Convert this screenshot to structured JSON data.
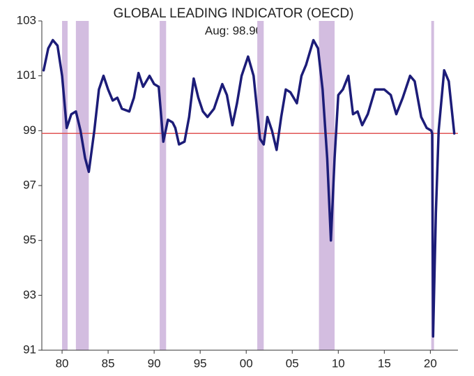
{
  "chart_data": {
    "type": "line",
    "title": "GLOBAL LEADING INDICATOR (OECD)",
    "subtitle": "Aug: 98.90",
    "xlim": [
      1977.8,
      2023
    ],
    "ylim": [
      91,
      103
    ],
    "yticks": [
      91,
      93,
      95,
      97,
      99,
      101,
      103
    ],
    "xticks": [
      {
        "value": 1980,
        "label": "80"
      },
      {
        "value": 1985,
        "label": "85"
      },
      {
        "value": 1990,
        "label": "90"
      },
      {
        "value": 1995,
        "label": "95"
      },
      {
        "value": 2000,
        "label": "00"
      },
      {
        "value": 2005,
        "label": "05"
      },
      {
        "value": 2010,
        "label": "10"
      },
      {
        "value": 2015,
        "label": "15"
      },
      {
        "value": 2020,
        "label": "20"
      }
    ],
    "reference_line": 98.9,
    "reference_color": "#e05555",
    "recessions": [
      [
        1980.0,
        1980.6
      ],
      [
        1981.5,
        1982.9
      ],
      [
        1990.6,
        1991.3
      ],
      [
        2001.2,
        2001.9
      ],
      [
        2007.9,
        2009.6
      ],
      [
        2020.1,
        2020.4
      ]
    ],
    "recession_color": "#d3bde0",
    "series": [
      {
        "name": "Global leading indicator",
        "color": "#1c1c78",
        "x": [
          1978,
          1978.5,
          1979,
          1979.5,
          1980,
          1980.5,
          1981,
          1981.5,
          1982,
          1982.5,
          1982.9,
          1983.5,
          1984,
          1984.5,
          1985,
          1985.5,
          1986,
          1986.5,
          1987.3,
          1987.8,
          1988.3,
          1988.8,
          1989.5,
          1990,
          1990.5,
          1991,
          1991.5,
          1992,
          1992.3,
          1992.7,
          1993.3,
          1993.8,
          1994.3,
          1994.8,
          1995.3,
          1995.8,
          1996.5,
          1997.4,
          1997.9,
          1998.5,
          1999,
          1999.5,
          2000.2,
          2000.8,
          2001.5,
          2001.9,
          2002.3,
          2002.8,
          2003.3,
          2003.8,
          2004.3,
          2004.8,
          2005.5,
          2006,
          2006.5,
          2007.3,
          2007.8,
          2008.3,
          2008.8,
          2009.2,
          2009.6,
          2010,
          2010.5,
          2011.1,
          2011.6,
          2012.1,
          2012.6,
          2013.2,
          2014,
          2015,
          2015.7,
          2016.3,
          2017,
          2017.8,
          2018.3,
          2019,
          2019.6,
          2020.1,
          2020.2,
          2020.3,
          2020.6,
          2020.9,
          2021.5,
          2022,
          2022.6
        ],
        "values": [
          101.2,
          102.0,
          102.3,
          102.1,
          101.0,
          99.1,
          99.6,
          99.7,
          99.0,
          98.0,
          97.5,
          99.0,
          100.5,
          101.0,
          100.5,
          100.1,
          100.2,
          99.8,
          99.7,
          100.2,
          101.1,
          100.6,
          101.0,
          100.7,
          100.6,
          98.6,
          99.4,
          99.3,
          99.1,
          98.5,
          98.6,
          99.5,
          100.9,
          100.2,
          99.7,
          99.5,
          99.8,
          100.7,
          100.3,
          99.2,
          100.0,
          101.0,
          101.7,
          101.0,
          98.7,
          98.5,
          99.5,
          99.0,
          98.3,
          99.5,
          100.5,
          100.4,
          100.0,
          101.0,
          101.4,
          102.3,
          102.0,
          100.5,
          98.0,
          95.0,
          98.0,
          100.3,
          100.5,
          101.0,
          99.6,
          99.7,
          99.2,
          99.6,
          100.5,
          100.5,
          100.3,
          99.6,
          100.2,
          101.0,
          100.8,
          99.5,
          99.1,
          99.0,
          98.9,
          91.5,
          96.0,
          99.0,
          101.2,
          100.8,
          98.9
        ]
      }
    ]
  }
}
